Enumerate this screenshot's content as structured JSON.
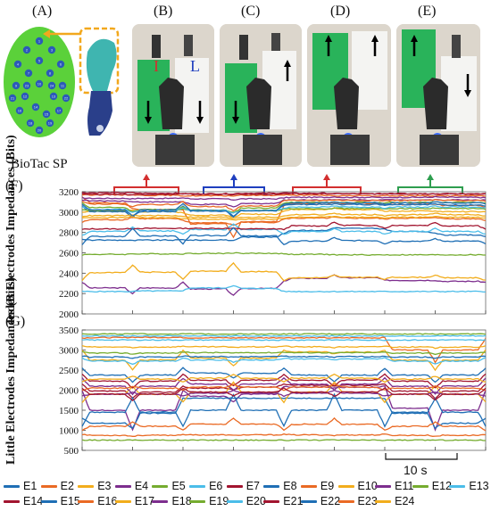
{
  "panels": {
    "A": "(A)",
    "B": "(B)",
    "C": "(C)",
    "D": "(D)",
    "E": "(E)",
    "F": "(F)",
    "G": "(G)"
  },
  "biotac_label": "BioTac SP",
  "photo_letters": {
    "I": "I",
    "L": "L"
  },
  "colors": {
    "bar_red": "#d32f2f",
    "bar_blue": "#1f3fbf",
    "bar_green": "#2e9e4f",
    "sensor_green": "#5bd13a",
    "sensor_blue": "#2c5ab8"
  },
  "scale_bar": {
    "label": "10 s"
  },
  "sensor_electrodes": [
    "1",
    "2",
    "3",
    "4",
    "5",
    "6",
    "7",
    "8",
    "9",
    "10",
    "11",
    "12",
    "13",
    "14",
    "15",
    "16",
    "17",
    "18",
    "19",
    "20",
    "21",
    "22",
    "23",
    "24"
  ],
  "legend": [
    {
      "name": "E1",
      "color": "#1f6fb5"
    },
    {
      "name": "E2",
      "color": "#ea6a24"
    },
    {
      "name": "E3",
      "color": "#f2ad1c"
    },
    {
      "name": "E4",
      "color": "#7d2e8e"
    },
    {
      "name": "E5",
      "color": "#75ac2f"
    },
    {
      "name": "E6",
      "color": "#4bbde9"
    },
    {
      "name": "E7",
      "color": "#a2142f"
    },
    {
      "name": "E8",
      "color": "#1f6fb5"
    },
    {
      "name": "E9",
      "color": "#ea6a24"
    },
    {
      "name": "E10",
      "color": "#f2ad1c"
    },
    {
      "name": "E11",
      "color": "#7d2e8e"
    },
    {
      "name": "E12",
      "color": "#75ac2f"
    },
    {
      "name": "E13",
      "color": "#4bbde9"
    },
    {
      "name": "E14",
      "color": "#a2142f"
    },
    {
      "name": "E15",
      "color": "#1f6fb5"
    },
    {
      "name": "E16",
      "color": "#ea6a24"
    },
    {
      "name": "E17",
      "color": "#f2ad1c"
    },
    {
      "name": "E18",
      "color": "#7d2e8e"
    },
    {
      "name": "E19",
      "color": "#75ac2f"
    },
    {
      "name": "E20",
      "color": "#4bbde9"
    },
    {
      "name": "E21",
      "color": "#a2142f"
    },
    {
      "name": "E22",
      "color": "#1f6fb5"
    },
    {
      "name": "E23",
      "color": "#ea6a24"
    },
    {
      "name": "E24",
      "color": "#f2ad1c"
    }
  ],
  "chart_data": [
    {
      "type": "line",
      "panel": "(F)",
      "ylabel": "Index Electrodes Impedances (Bits)",
      "ylim": [
        2000,
        3200
      ],
      "yticks": [
        2000,
        2200,
        2400,
        2600,
        2800,
        3000,
        3200
      ],
      "grid": false,
      "x_seconds": [
        0,
        5,
        10,
        15,
        20,
        25,
        30,
        35,
        40
      ],
      "series": [
        {
          "name": "E1",
          "values": [
            2730,
            2720,
            2730,
            2720,
            2790,
            2850,
            2830,
            2790,
            2760
          ]
        },
        {
          "name": "E2",
          "values": [
            3150,
            3030,
            3020,
            2750,
            3060,
            3100,
            3070,
            3080,
            3050
          ]
        },
        {
          "name": "E3",
          "values": [
            3000,
            3020,
            2990,
            2950,
            3010,
            3040,
            3010,
            3010,
            3000
          ]
        },
        {
          "name": "E4",
          "values": [
            2310,
            2200,
            2310,
            2180,
            2320,
            2380,
            2330,
            2330,
            2310
          ]
        },
        {
          "name": "E5",
          "values": [
            2580,
            2590,
            2590,
            2600,
            2590,
            2580,
            2580,
            2580,
            2580
          ]
        },
        {
          "name": "E6",
          "values": [
            2220,
            2220,
            2230,
            2280,
            2220,
            2220,
            2220,
            2220,
            2220
          ]
        },
        {
          "name": "E7",
          "values": [
            3190,
            3190,
            3180,
            3180,
            3190,
            3180,
            3180,
            3180,
            3180
          ]
        },
        {
          "name": "E8",
          "values": [
            3060,
            2950,
            3060,
            2960,
            3070,
            3080,
            3070,
            3080,
            3060
          ]
        },
        {
          "name": "E9",
          "values": [
            2900,
            2950,
            2920,
            2870,
            2930,
            2950,
            2930,
            2950,
            2920
          ]
        },
        {
          "name": "E10",
          "values": [
            2330,
            2480,
            2340,
            2500,
            2330,
            2380,
            2340,
            2380,
            2330
          ]
        },
        {
          "name": "E11",
          "values": [
            3120,
            3100,
            3100,
            3050,
            3120,
            3120,
            3120,
            3120,
            3120
          ]
        },
        {
          "name": "E12",
          "values": [
            3090,
            3000,
            3050,
            2990,
            3090,
            3100,
            3090,
            3100,
            3090
          ]
        },
        {
          "name": "E13",
          "values": [
            2770,
            2850,
            2780,
            2880,
            2780,
            2840,
            2780,
            2840,
            2780
          ]
        },
        {
          "name": "E14",
          "values": [
            2830,
            2840,
            2840,
            2840,
            2830,
            2900,
            2840,
            2900,
            2830
          ]
        },
        {
          "name": "E15",
          "values": [
            2680,
            2840,
            2690,
            2850,
            2680,
            2750,
            2690,
            2740,
            2690
          ]
        },
        {
          "name": "E16",
          "values": [
            3170,
            3170,
            3160,
            3160,
            3170,
            3160,
            3160,
            3160,
            3160
          ]
        },
        {
          "name": "E17",
          "values": [
            2960,
            2970,
            2960,
            2940,
            2960,
            2990,
            2960,
            2990,
            2960
          ]
        },
        {
          "name": "E18",
          "values": [
            3140,
            3130,
            3140,
            3120,
            3140,
            3150,
            3140,
            3150,
            3140
          ]
        },
        {
          "name": "E19",
          "values": [
            3020,
            3010,
            3030,
            3000,
            3030,
            3040,
            3030,
            3040,
            3030
          ]
        },
        {
          "name": "E20",
          "values": [
            3050,
            3000,
            3040,
            2990,
            3040,
            3060,
            3040,
            3060,
            3040
          ]
        },
        {
          "name": "E21",
          "values": [
            3180,
            3170,
            3180,
            3170,
            3180,
            3180,
            3180,
            3180,
            3180
          ]
        },
        {
          "name": "E22",
          "values": [
            3080,
            2960,
            3080,
            2950,
            3080,
            3100,
            3080,
            3100,
            3080
          ]
        },
        {
          "name": "E23",
          "values": [
            3110,
            3050,
            3100,
            3010,
            3110,
            3120,
            3110,
            3120,
            3110
          ]
        },
        {
          "name": "E24",
          "values": [
            2940,
            2950,
            2940,
            2920,
            2940,
            2960,
            2940,
            2960,
            2940
          ]
        }
      ]
    },
    {
      "type": "line",
      "panel": "(G)",
      "ylabel": "Little Electrodes Impedances (Bits)",
      "ylim": [
        500,
        3500
      ],
      "yticks": [
        500,
        1000,
        1500,
        2000,
        2500,
        3000,
        3500
      ],
      "grid": false,
      "x_seconds": [
        0,
        5,
        10,
        15,
        20,
        25,
        30,
        35,
        40
      ],
      "series": [
        {
          "name": "E1",
          "values": [
            2550,
            2200,
            2550,
            2300,
            2550,
            2200,
            2550,
            2200,
            2550
          ]
        },
        {
          "name": "E2",
          "values": [
            3300,
            3320,
            3310,
            3300,
            3310,
            3300,
            3310,
            2700,
            3300
          ]
        },
        {
          "name": "E3",
          "values": [
            3000,
            2500,
            3000,
            2600,
            3000,
            2900,
            3000,
            2500,
            3000
          ]
        },
        {
          "name": "E4",
          "values": [
            2000,
            1000,
            2000,
            1700,
            2100,
            2050,
            2100,
            1000,
            2000
          ]
        },
        {
          "name": "E5",
          "values": [
            750,
            760,
            750,
            760,
            750,
            760,
            750,
            760,
            750
          ]
        },
        {
          "name": "E6",
          "values": [
            2800,
            2650,
            2800,
            2700,
            2800,
            2750,
            2800,
            2650,
            2800
          ]
        },
        {
          "name": "E7",
          "values": [
            2150,
            1800,
            2100,
            2000,
            2150,
            2100,
            2150,
            1800,
            2150
          ]
        },
        {
          "name": "E8",
          "values": [
            1300,
            1050,
            1800,
            1800,
            1800,
            1800,
            1800,
            1050,
            1300
          ]
        },
        {
          "name": "E9",
          "values": [
            1000,
            1200,
            1000,
            1300,
            1000,
            1300,
            1000,
            1200,
            1000
          ]
        },
        {
          "name": "E10",
          "values": [
            1700,
            2100,
            1700,
            2200,
            1700,
            2200,
            1700,
            2100,
            1700
          ]
        },
        {
          "name": "E11",
          "values": [
            2300,
            1900,
            2300,
            2000,
            2300,
            2000,
            2300,
            1900,
            2300
          ]
        },
        {
          "name": "E12",
          "values": [
            2950,
            2900,
            2950,
            2920,
            2950,
            2920,
            2950,
            2900,
            2950
          ]
        },
        {
          "name": "E13",
          "values": [
            3250,
            3250,
            3250,
            3250,
            3250,
            3250,
            3250,
            3250,
            3250
          ]
        },
        {
          "name": "E14",
          "values": [
            2400,
            2050,
            2400,
            2100,
            2400,
            2100,
            2400,
            2050,
            2400
          ]
        },
        {
          "name": "E15",
          "values": [
            1100,
            1800,
            1100,
            1900,
            1100,
            1900,
            1100,
            1800,
            1100
          ]
        },
        {
          "name": "E16",
          "values": [
            2000,
            2100,
            2000,
            2150,
            2000,
            2150,
            2000,
            2100,
            2000
          ]
        },
        {
          "name": "E17",
          "values": [
            2200,
            2350,
            2200,
            2400,
            2200,
            2400,
            2200,
            2350,
            2200
          ]
        },
        {
          "name": "E18",
          "values": [
            1850,
            1950,
            1850,
            2000,
            1850,
            2000,
            1850,
            1950,
            1850
          ]
        },
        {
          "name": "E19",
          "values": [
            3400,
            3400,
            3400,
            3400,
            3400,
            3400,
            3400,
            3400,
            3400
          ]
        },
        {
          "name": "E20",
          "values": [
            3350,
            3350,
            3350,
            3350,
            3350,
            3350,
            3350,
            3350,
            3350
          ]
        },
        {
          "name": "E21",
          "values": [
            2050,
            1750,
            2050,
            1850,
            2050,
            1850,
            2050,
            1750,
            2050
          ]
        },
        {
          "name": "E22",
          "values": [
            2850,
            2800,
            2850,
            2820,
            2850,
            2820,
            2850,
            2800,
            2850
          ]
        },
        {
          "name": "E23",
          "values": [
            900,
            850,
            900,
            870,
            900,
            870,
            900,
            850,
            900
          ]
        },
        {
          "name": "E24",
          "values": [
            3100,
            3050,
            3100,
            3060,
            3100,
            3060,
            3100,
            3050,
            3100
          ]
        }
      ]
    }
  ]
}
